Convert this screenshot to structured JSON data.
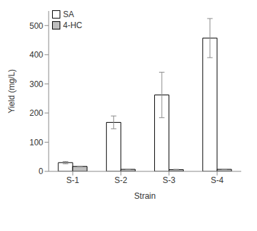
{
  "chart_data": {
    "type": "bar",
    "categories": [
      "S-1",
      "S-2",
      "S-3",
      "S-4"
    ],
    "x_label": "Strain",
    "y_label": "Yield (mg/L)",
    "ylim": [
      0,
      550
    ],
    "yticks": [
      0,
      100,
      200,
      300,
      400,
      500
    ],
    "grid": false,
    "legend": "upper left",
    "series": [
      {
        "name": "SA",
        "color": "#ffffff",
        "values": [
          30,
          168,
          262,
          457
        ],
        "errors": [
          4,
          22,
          78,
          67
        ]
      },
      {
        "name": "4-HC",
        "color": "#bfbfbf",
        "values": [
          17,
          7,
          6,
          7
        ],
        "errors": [
          1,
          1,
          1,
          1
        ]
      }
    ]
  }
}
